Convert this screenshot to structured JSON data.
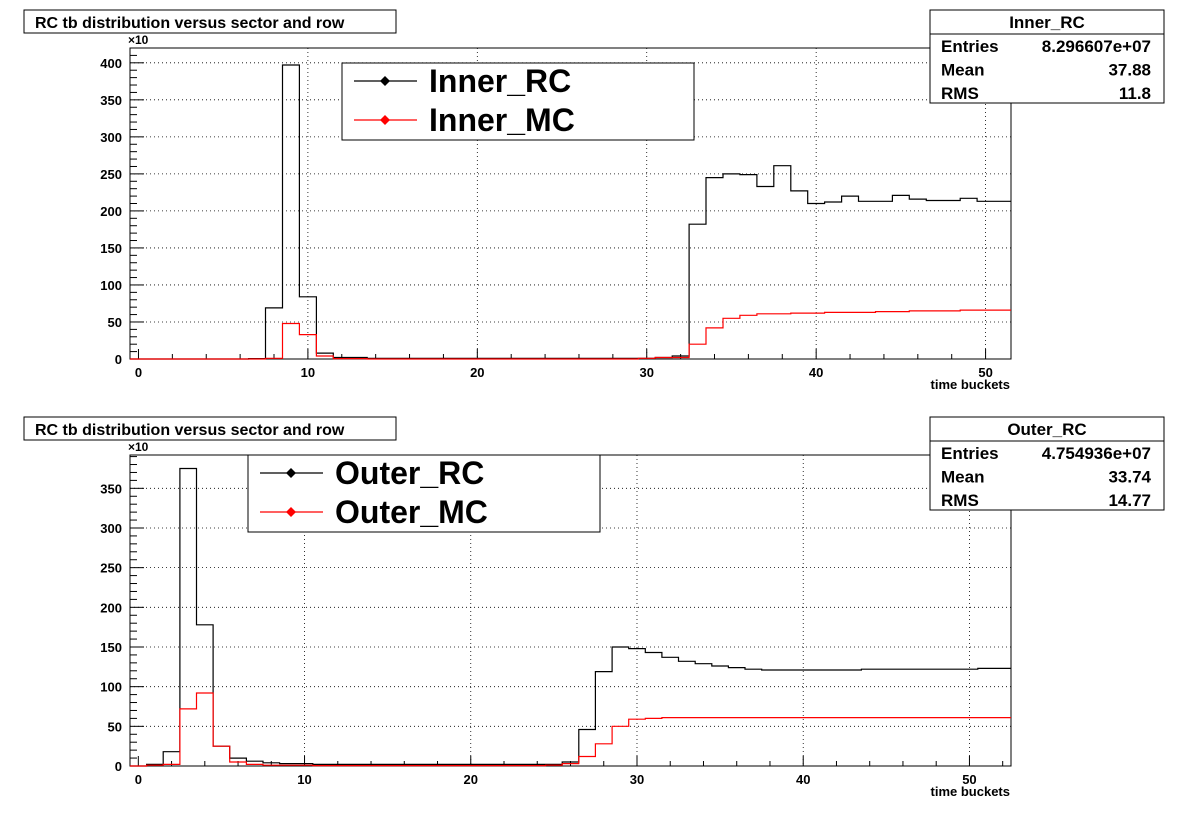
{
  "chart_data": [
    {
      "type": "line",
      "title": "RC tb distribution versus sector and row",
      "xlabel": "time buckets",
      "ylabel": "",
      "y_multiplier": "×10",
      "xlim": [
        -0.5,
        51.5
      ],
      "ylim": [
        0,
        420
      ],
      "x_ticks": [
        0,
        10,
        20,
        30,
        40,
        50
      ],
      "y_ticks": [
        0,
        50,
        100,
        150,
        200,
        250,
        300,
        350,
        400
      ],
      "grid": true,
      "legend_position": "top-center",
      "series": [
        {
          "name": "Inner_RC",
          "color": "#000000",
          "values": [
            0,
            0,
            0,
            0,
            0,
            0,
            0,
            0.5,
            69,
            397,
            84,
            8,
            2,
            2,
            1,
            1,
            1,
            1,
            1,
            1,
            1,
            1,
            1,
            1,
            1,
            1,
            1,
            1,
            1,
            1,
            1,
            2,
            4,
            182,
            245,
            250,
            249,
            233,
            261,
            227,
            210,
            212,
            220,
            213,
            213,
            221,
            216,
            214,
            214,
            217,
            213,
            213
          ]
        },
        {
          "name": "Inner_MC",
          "color": "#ff0000",
          "values": [
            0,
            0,
            0,
            0,
            0,
            0,
            0,
            0,
            1,
            48,
            33,
            4,
            0.5,
            0.5,
            0,
            0,
            0,
            0,
            0,
            0,
            0,
            0,
            0,
            0,
            0,
            0,
            0,
            0,
            0,
            0,
            1,
            2,
            2,
            20,
            42,
            55,
            59,
            61,
            61,
            62,
            62,
            63,
            63,
            63,
            64,
            64,
            65,
            65,
            65,
            66,
            66,
            66
          ]
        }
      ],
      "stats": {
        "name": "Inner_RC",
        "rows": [
          [
            "Entries",
            "8.296607e+07"
          ],
          [
            "Mean",
            "37.88"
          ],
          [
            "RMS",
            "11.8"
          ]
        ]
      }
    },
    {
      "type": "line",
      "title": "RC tb distribution versus sector and row",
      "xlabel": "time buckets",
      "ylabel": "",
      "y_multiplier": "×10",
      "xlim": [
        -0.5,
        52.5
      ],
      "ylim": [
        0,
        392
      ],
      "x_ticks": [
        0,
        10,
        20,
        30,
        40,
        50
      ],
      "y_ticks": [
        0,
        50,
        100,
        150,
        200,
        250,
        300,
        350
      ],
      "grid": true,
      "legend_position": "top-left",
      "series": [
        {
          "name": "Outer_RC",
          "color": "#000000",
          "values": [
            0,
            2,
            18,
            375,
            178,
            25,
            10,
            6,
            4,
            3,
            3,
            2,
            2,
            2,
            2,
            2,
            2,
            2,
            2,
            2,
            2,
            2,
            2,
            2,
            2,
            2,
            5,
            46,
            119,
            150,
            148,
            143,
            137,
            132,
            129,
            126,
            124,
            122,
            121,
            121,
            121,
            121,
            121,
            121,
            122,
            122,
            122,
            122,
            122,
            122,
            122,
            123,
            123
          ]
        },
        {
          "name": "Outer_MC",
          "color": "#ff0000",
          "values": [
            0,
            1,
            2,
            72,
            92,
            25,
            5,
            2,
            1,
            1,
            1,
            0.5,
            0.5,
            0.5,
            0.5,
            0.5,
            0.5,
            0.5,
            0.5,
            0.5,
            0.5,
            0.5,
            0.5,
            0.5,
            0.5,
            1,
            3,
            12,
            28,
            50,
            59,
            60,
            61,
            61,
            61,
            61,
            61,
            61,
            61,
            61,
            61,
            61,
            61,
            61,
            61,
            61,
            61,
            61,
            61,
            61,
            61,
            61,
            61
          ]
        }
      ],
      "stats": {
        "name": "Outer_RC",
        "rows": [
          [
            "Entries",
            "4.754936e+07"
          ],
          [
            "Mean",
            "33.74"
          ],
          [
            "RMS",
            "14.77"
          ]
        ]
      }
    }
  ]
}
